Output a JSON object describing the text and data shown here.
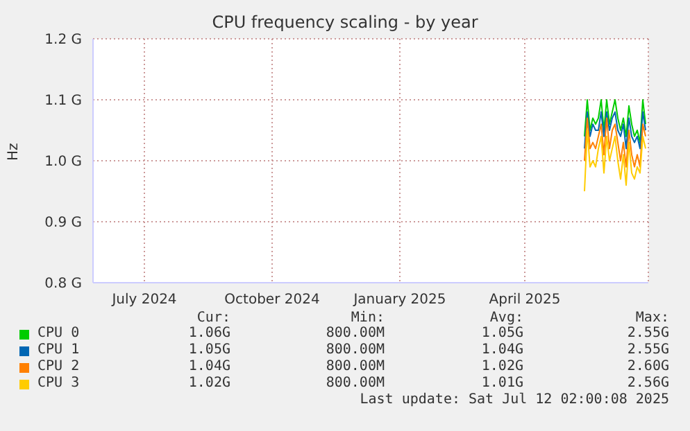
{
  "chart_data": {
    "type": "line",
    "title": "CPU frequency scaling - by year",
    "ylabel": "Hz",
    "x": [
      "2025-05-29",
      "2025-05-31",
      "2025-06-02",
      "2025-06-04",
      "2025-06-06",
      "2025-06-08",
      "2025-06-10",
      "2025-06-12",
      "2025-06-14",
      "2025-06-16",
      "2025-06-18",
      "2025-06-20",
      "2025-06-22",
      "2025-06-24",
      "2025-06-26",
      "2025-06-28",
      "2025-06-30",
      "2025-07-02",
      "2025-07-04",
      "2025-07-06",
      "2025-07-08",
      "2025-07-10",
      "2025-07-12"
    ],
    "series": [
      {
        "name": "CPU 0",
        "color": "#00cc00",
        "values": [
          1.04,
          1.1,
          1.05,
          1.07,
          1.06,
          1.07,
          1.1,
          1.05,
          1.1,
          1.06,
          1.08,
          1.1,
          1.07,
          1.05,
          1.07,
          1.04,
          1.09,
          1.06,
          1.04,
          1.05,
          1.03,
          1.1,
          1.06
        ]
      },
      {
        "name": "CPU 1",
        "color": "#0066b3",
        "values": [
          1.02,
          1.08,
          1.04,
          1.06,
          1.05,
          1.05,
          1.08,
          1.04,
          1.08,
          1.05,
          1.07,
          1.08,
          1.05,
          1.04,
          1.06,
          1.02,
          1.07,
          1.04,
          1.03,
          1.04,
          1.02,
          1.08,
          1.05
        ]
      },
      {
        "name": "CPU 2",
        "color": "#ff8000",
        "values": [
          1.0,
          1.07,
          1.02,
          1.03,
          1.02,
          1.04,
          1.06,
          1.01,
          1.07,
          1.02,
          1.05,
          1.06,
          1.03,
          1.0,
          1.03,
          0.99,
          1.05,
          1.01,
          0.99,
          1.01,
          0.99,
          1.06,
          1.04
        ]
      },
      {
        "name": "CPU 3",
        "color": "#ffcc00",
        "values": [
          0.95,
          1.05,
          0.99,
          1.0,
          0.99,
          1.02,
          1.04,
          0.98,
          1.04,
          1.0,
          1.02,
          1.04,
          1.0,
          0.97,
          1.01,
          0.96,
          1.03,
          0.98,
          0.97,
          0.99,
          0.98,
          1.04,
          1.02
        ]
      }
    ],
    "xlim": [
      "2024-06-09",
      "2025-07-14"
    ],
    "xticks": [
      {
        "value": "2024-07-16",
        "label": "July 2024"
      },
      {
        "value": "2024-10-16",
        "label": "October 2024"
      },
      {
        "value": "2025-01-16",
        "label": "January 2025"
      },
      {
        "value": "2025-04-16",
        "label": "April 2025"
      }
    ],
    "ylim": [
      0.8,
      1.2
    ],
    "yticks": [
      {
        "value": 0.8,
        "label": "0.8 G"
      },
      {
        "value": 0.9,
        "label": "0.9 G"
      },
      {
        "value": 1.0,
        "label": "1.0 G"
      },
      {
        "value": 1.1,
        "label": "1.1 G"
      },
      {
        "value": 1.2,
        "label": "1.2 G"
      }
    ],
    "grid": true,
    "legend": "bottom",
    "marker": "none",
    "line_style": "solid",
    "annotations": [
      "Cur:",
      "Min:",
      "Avg:",
      "Max:",
      "1.06G",
      "800.00M",
      "1.05G",
      "2.55G",
      "1.05G",
      "800.00M",
      "1.04G",
      "2.55G",
      "1.04G",
      "800.00M",
      "1.02G",
      "2.60G",
      "1.02G",
      "800.00M",
      "1.01G",
      "2.56G",
      "Last update: Sat Jul 12 02:00:08 2025"
    ]
  }
}
